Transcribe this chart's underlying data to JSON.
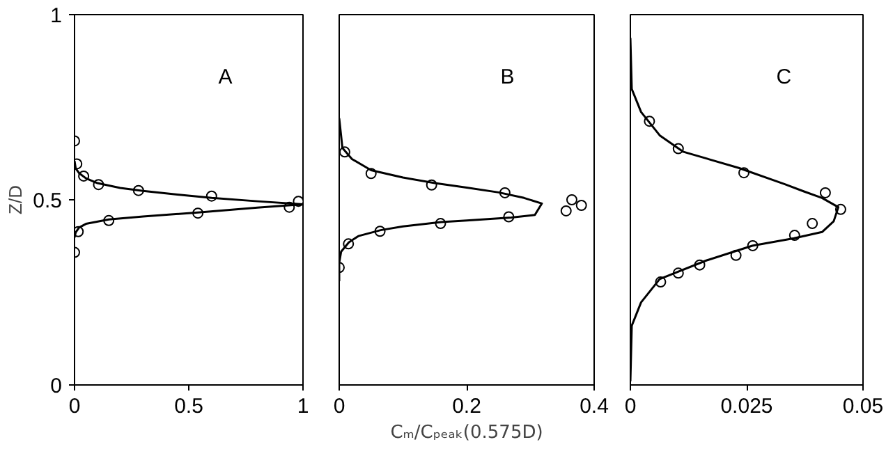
{
  "chart_data": [
    {
      "type": "scatter",
      "ylabel": "Z/D",
      "xlim": [
        0,
        1
      ],
      "xticks": [
        0,
        0.5,
        1
      ],
      "ylim": [
        0,
        1
      ],
      "yticks": [
        0,
        0.5,
        1
      ],
      "grid": false,
      "annotations": [
        "A"
      ],
      "series": [
        {
          "marker": "circle",
          "color": "#000000",
          "x": [
            0,
            0.01,
            0.04,
            0.105,
            0.28,
            0.6,
            0.98,
            0.94,
            0.54,
            0.15,
            0.016,
            0
          ],
          "values": [
            0.659,
            0.597,
            0.564,
            0.541,
            0.525,
            0.51,
            0.496,
            0.48,
            0.464,
            0.444,
            0.414,
            0.358
          ]
        },
        {
          "type": "line",
          "color": "#000000",
          "x": [
            0,
            0.005,
            0.02,
            0.05,
            0.1,
            0.2,
            0.3,
            0.45,
            0.6,
            0.8,
            1.0,
            0.8,
            0.55,
            0.3,
            0.15,
            0.05,
            0.02,
            0.005,
            0
          ],
          "values": [
            0.605,
            0.585,
            0.572,
            0.558,
            0.545,
            0.532,
            0.524,
            0.514,
            0.505,
            0.496,
            0.488,
            0.479,
            0.466,
            0.455,
            0.447,
            0.435,
            0.425,
            0.412,
            0.398
          ]
        }
      ]
    },
    {
      "type": "scatter",
      "xlabel": "Cₘ/Cₚₑₐₖ(0.575D)",
      "xlim": [
        0,
        0.4
      ],
      "xticks": [
        0,
        0.2,
        0.4
      ],
      "ylim": [
        0,
        1
      ],
      "tick_labels": "x",
      "grid": false,
      "annotations": [
        "B"
      ],
      "series": [
        {
          "marker": "circle",
          "color": "#000000",
          "x": [
            0.0087,
            0.05,
            0.145,
            0.26,
            0.365,
            0.38,
            0.356,
            0.266,
            0.159,
            0.064,
            0.0145,
            0
          ],
          "values": [
            0.629,
            0.571,
            0.54,
            0.519,
            0.5,
            0.485,
            0.47,
            0.454,
            0.436,
            0.415,
            0.381,
            0.317
          ]
        },
        {
          "type": "line",
          "color": "#000000",
          "x": [
            0,
            0.005,
            0.02,
            0.05,
            0.1,
            0.15,
            0.2,
            0.25,
            0.29,
            0.318,
            0.307,
            0.27,
            0.2,
            0.16,
            0.1,
            0.065,
            0.03,
            0.015,
            0.003,
            0,
            0
          ],
          "values": [
            0.72,
            0.64,
            0.61,
            0.58,
            0.56,
            0.545,
            0.533,
            0.52,
            0.505,
            0.49,
            0.459,
            0.452,
            0.444,
            0.44,
            0.428,
            0.418,
            0.402,
            0.385,
            0.36,
            0.33,
            0.28
          ]
        }
      ]
    },
    {
      "type": "scatter",
      "xlim": [
        0,
        0.05
      ],
      "xticks": [
        0,
        0.025,
        0.05
      ],
      "ylim": [
        0,
        1
      ],
      "tick_labels": "x",
      "grid": false,
      "annotations": [
        "C"
      ],
      "series": [
        {
          "marker": "circle",
          "color": "#000000",
          "x": [
            0.0041,
            0.0103,
            0.0244,
            0.0419,
            0.0452,
            0.0391,
            0.0353,
            0.0263,
            0.0227,
            0.0149,
            0.0103,
            0.0065
          ],
          "values": [
            0.712,
            0.638,
            0.573,
            0.519,
            0.474,
            0.436,
            0.404,
            0.376,
            0.35,
            0.324,
            0.302,
            0.278
          ]
        },
        {
          "type": "line",
          "color": "#000000",
          "x": [
            0,
            0.0003,
            0.0023,
            0.0063,
            0.0113,
            0.0233,
            0.0332,
            0.0372,
            0.0412,
            0.0447,
            0.0437,
            0.0412,
            0.0352,
            0.0262,
            0.0163,
            0.0063,
            0.0023,
            0.0003,
            0
          ],
          "values": [
            0.937,
            0.799,
            0.737,
            0.674,
            0.63,
            0.586,
            0.542,
            0.523,
            0.505,
            0.48,
            0.442,
            0.413,
            0.396,
            0.376,
            0.336,
            0.286,
            0.223,
            0.16,
            0.01
          ]
        }
      ]
    }
  ]
}
